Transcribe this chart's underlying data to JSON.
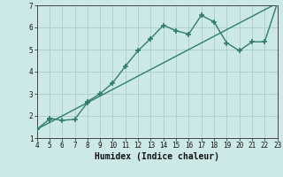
{
  "xlabel": "Humidex (Indice chaleur)",
  "xlim": [
    4,
    23
  ],
  "ylim": [
    1,
    7
  ],
  "xticks": [
    4,
    5,
    6,
    7,
    8,
    9,
    10,
    11,
    12,
    13,
    14,
    15,
    16,
    17,
    18,
    19,
    20,
    21,
    22,
    23
  ],
  "yticks": [
    1,
    2,
    3,
    4,
    5,
    6,
    7
  ],
  "bg_color": "#cce9e7",
  "grid_color": "#b0d0ce",
  "line_color": "#2e7d6e",
  "curve_x": [
    4,
    5,
    5,
    6,
    7,
    8,
    8,
    9,
    10,
    11,
    12,
    13,
    14,
    15,
    16,
    17,
    18,
    19,
    20,
    21,
    22,
    23
  ],
  "curve_y": [
    1.4,
    1.85,
    1.9,
    1.8,
    1.85,
    2.6,
    2.65,
    3.0,
    3.5,
    4.25,
    4.95,
    5.5,
    6.1,
    5.85,
    5.7,
    6.55,
    6.25,
    5.3,
    4.95,
    5.35,
    5.35,
    7.1
  ],
  "line_x": [
    4,
    23
  ],
  "line_y": [
    1.4,
    7.1
  ],
  "marker_size": 4,
  "line_width": 1.0
}
